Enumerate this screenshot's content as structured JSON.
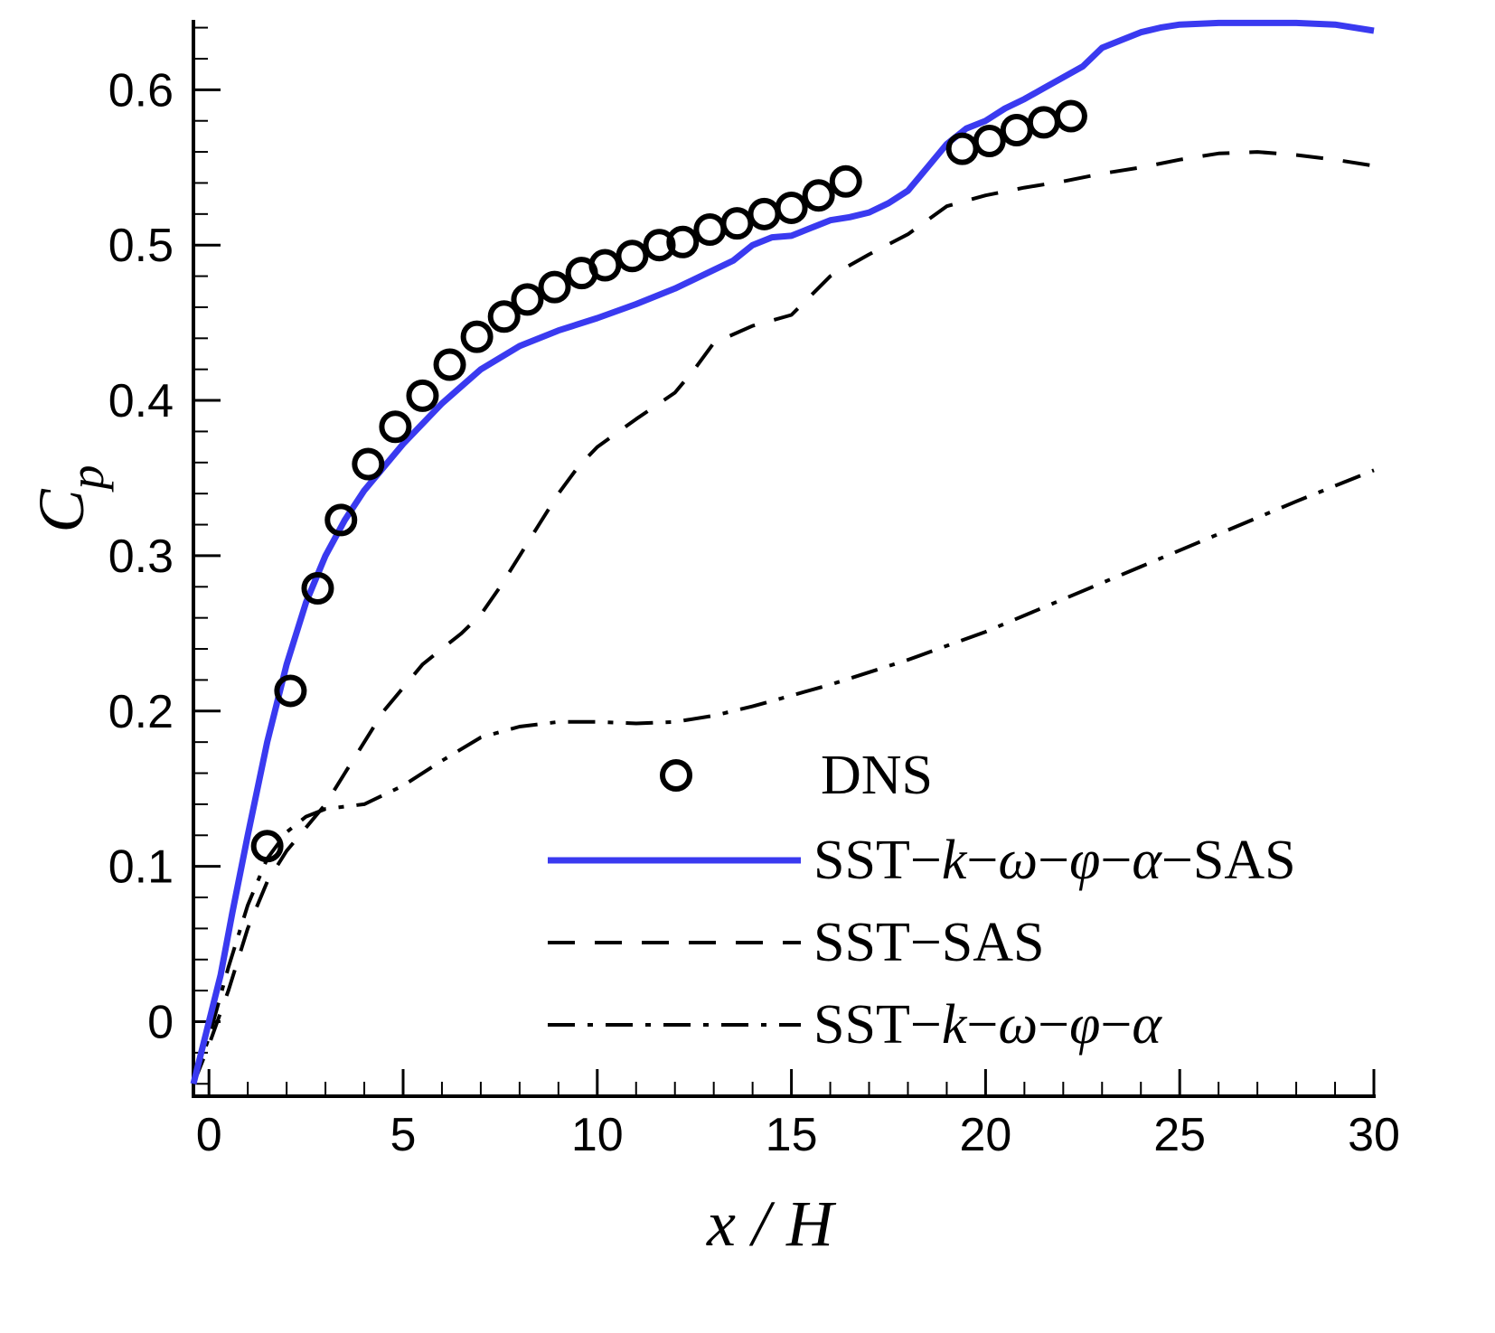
{
  "chart_data": {
    "type": "line",
    "title": "",
    "xlabel": "x / H",
    "ylabel": "C_p",
    "ylabel_main": "C",
    "ylabel_sub": "p",
    "xlim": [
      -0.4,
      30
    ],
    "ylim": [
      -0.048,
      0.645
    ],
    "x_ticks": [
      0,
      5,
      10,
      15,
      20,
      25,
      30
    ],
    "x_tick_labels": [
      "0",
      "5",
      "10",
      "15",
      "20",
      "25",
      "30"
    ],
    "x_minor_step": 1,
    "y_ticks": [
      0,
      0.1,
      0.2,
      0.3,
      0.4,
      0.5,
      0.6
    ],
    "y_tick_labels": [
      "0",
      "0.1",
      "0.2",
      "0.3",
      "0.4",
      "0.5",
      "0.6"
    ],
    "y_minor_step": 0.02,
    "grid": false,
    "legend_position": "bottom-right",
    "colors": {
      "blue": "#3a3af0",
      "black": "#000000"
    },
    "series": [
      {
        "name": "DNS",
        "style": "markers",
        "legend": [
          {
            "t": "DNS",
            "i": false
          }
        ],
        "x": [
          1.5,
          2.1,
          2.8,
          3.4,
          4.1,
          4.8,
          5.5,
          6.2,
          6.9,
          7.6,
          8.2,
          8.9,
          9.6,
          10.2,
          10.9,
          11.6,
          12.2,
          12.9,
          13.6,
          14.3,
          15.0,
          15.7,
          16.4,
          19.4,
          20.1,
          20.8,
          21.5,
          22.2
        ],
        "y": [
          0.113,
          0.213,
          0.279,
          0.323,
          0.359,
          0.383,
          0.403,
          0.423,
          0.441,
          0.454,
          0.465,
          0.473,
          0.482,
          0.487,
          0.493,
          0.5,
          0.502,
          0.51,
          0.514,
          0.52,
          0.524,
          0.532,
          0.541,
          0.562,
          0.567,
          0.574,
          0.579,
          0.583
        ]
      },
      {
        "name": "SST-k-ω-φ-α-SAS",
        "style": "solid",
        "legend": [
          {
            "t": "SST−",
            "i": false
          },
          {
            "t": "k",
            "i": true
          },
          {
            "t": "−",
            "i": false
          },
          {
            "t": "ω",
            "i": true
          },
          {
            "t": "−",
            "i": false
          },
          {
            "t": "φ",
            "i": true
          },
          {
            "t": "−",
            "i": false
          },
          {
            "t": "α",
            "i": true
          },
          {
            "t": "−SAS",
            "i": false
          }
        ],
        "x": [
          -0.4,
          -0.2,
          0,
          0.3,
          0.6,
          1.0,
          1.5,
          2.0,
          2.5,
          3.0,
          3.5,
          4.0,
          5.0,
          6.0,
          7.0,
          8.0,
          9.0,
          10.0,
          11.0,
          12.0,
          13.0,
          13.5,
          14.0,
          14.5,
          15.0,
          15.5,
          16.0,
          16.5,
          17.0,
          17.5,
          18.0,
          18.5,
          19.0,
          19.5,
          20.0,
          20.5,
          21.0,
          21.5,
          22.0,
          22.5,
          23.0,
          23.5,
          24.0,
          24.5,
          25.0,
          26.0,
          27.0,
          28.0,
          29.0,
          30.0
        ],
        "y": [
          -0.04,
          -0.02,
          0.0,
          0.03,
          0.07,
          0.12,
          0.18,
          0.23,
          0.27,
          0.3,
          0.323,
          0.342,
          0.372,
          0.398,
          0.42,
          0.435,
          0.445,
          0.453,
          0.462,
          0.472,
          0.484,
          0.49,
          0.5,
          0.505,
          0.506,
          0.511,
          0.516,
          0.518,
          0.521,
          0.527,
          0.535,
          0.55,
          0.565,
          0.575,
          0.58,
          0.588,
          0.594,
          0.601,
          0.608,
          0.615,
          0.627,
          0.632,
          0.637,
          0.64,
          0.642,
          0.643,
          0.643,
          0.643,
          0.642,
          0.638
        ]
      },
      {
        "name": "SST-SAS",
        "style": "dashed",
        "legend": [
          {
            "t": "SST−SAS",
            "i": false
          }
        ],
        "x": [
          -0.4,
          0,
          0.5,
          1.0,
          1.5,
          2.0,
          2.5,
          3.0,
          3.5,
          4.0,
          4.5,
          5.0,
          5.5,
          6.0,
          6.5,
          7.0,
          7.5,
          8.0,
          8.5,
          9.0,
          9.5,
          10.0,
          11.0,
          12.0,
          12.5,
          13.0,
          14.0,
          15.0,
          16.0,
          17.0,
          18.0,
          19.0,
          20.0,
          21.0,
          22.0,
          23.0,
          24.0,
          25.0,
          26.0,
          27.0,
          28.0,
          29.0,
          30.0
        ],
        "y": [
          -0.04,
          -0.015,
          0.02,
          0.06,
          0.09,
          0.11,
          0.125,
          0.14,
          0.16,
          0.18,
          0.2,
          0.215,
          0.23,
          0.24,
          0.25,
          0.262,
          0.28,
          0.3,
          0.32,
          0.34,
          0.357,
          0.37,
          0.388,
          0.405,
          0.42,
          0.437,
          0.448,
          0.455,
          0.48,
          0.494,
          0.507,
          0.525,
          0.532,
          0.537,
          0.541,
          0.546,
          0.55,
          0.555,
          0.559,
          0.56,
          0.558,
          0.555,
          0.551
        ]
      },
      {
        "name": "SST-k-ω-φ-α",
        "style": "dashdot",
        "legend": [
          {
            "t": "SST−",
            "i": false
          },
          {
            "t": "k",
            "i": true
          },
          {
            "t": "−",
            "i": false
          },
          {
            "t": "ω",
            "i": true
          },
          {
            "t": "−",
            "i": false
          },
          {
            "t": "φ",
            "i": true
          },
          {
            "t": "−",
            "i": false
          },
          {
            "t": "α",
            "i": true
          }
        ],
        "x": [
          -0.4,
          0,
          0.5,
          1.0,
          1.5,
          2.0,
          2.5,
          3.0,
          4.0,
          5.0,
          6.0,
          7.0,
          8.0,
          9.0,
          10.0,
          11.0,
          12.0,
          13.0,
          14.0,
          16.0,
          18.0,
          20.0,
          22.0,
          24.0,
          26.0,
          28.0,
          30.0
        ],
        "y": [
          -0.04,
          -0.01,
          0.035,
          0.075,
          0.105,
          0.122,
          0.132,
          0.137,
          0.14,
          0.152,
          0.168,
          0.183,
          0.19,
          0.193,
          0.193,
          0.192,
          0.193,
          0.197,
          0.203,
          0.217,
          0.233,
          0.251,
          0.272,
          0.293,
          0.314,
          0.335,
          0.355
        ]
      }
    ]
  }
}
